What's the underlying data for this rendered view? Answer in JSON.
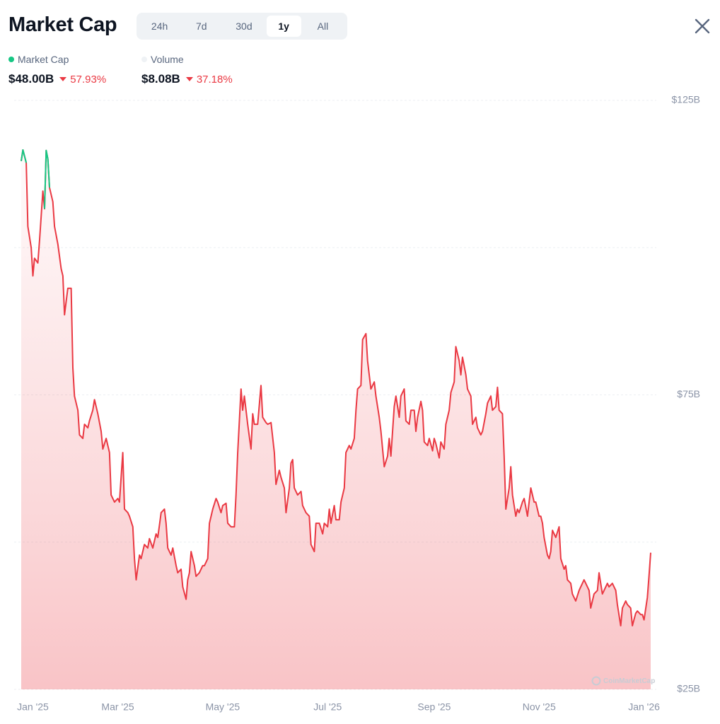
{
  "header": {
    "title": "Market Cap",
    "tabs": [
      "24h",
      "7d",
      "30d",
      "1y",
      "All"
    ],
    "active_tab": 3
  },
  "stats": [
    {
      "name": "Market Cap",
      "color": "#16c784",
      "value": "$48.00B",
      "change": "57.93%"
    },
    {
      "name": "Volume",
      "color": "#eff2f5",
      "value": "$8.08B",
      "change": "37.18%"
    }
  ],
  "watermark": "CoinMarketCap",
  "chart_data": {
    "type": "line",
    "x": [
      0,
      1,
      3,
      4,
      6,
      7,
      8,
      10,
      11,
      13,
      14,
      15,
      16,
      17,
      19,
      20,
      22,
      24,
      25,
      26,
      28,
      30,
      31,
      32,
      34,
      35,
      37,
      38,
      40,
      41,
      43,
      44,
      46,
      48,
      49,
      51,
      53,
      54,
      56,
      58,
      59,
      61,
      62,
      64,
      65,
      67,
      68,
      69,
      71,
      72,
      74,
      76,
      77,
      79,
      81,
      82,
      84,
      86,
      87,
      88,
      90,
      91,
      93,
      94,
      96,
      97,
      99,
      100,
      101,
      102,
      104,
      105,
      107,
      109,
      110,
      112,
      113,
      115,
      117,
      118,
      120,
      121,
      123,
      124,
      126,
      128,
      129,
      130,
      132,
      133,
      134,
      136,
      138,
      139,
      140,
      142,
      144,
      145,
      147,
      148,
      150,
      152,
      153,
      155,
      156,
      158,
      159,
      161,
      162,
      163,
      164,
      166,
      168,
      169,
      171,
      173,
      174,
      176,
      177,
      179,
      181,
      182,
      184,
      185,
      186,
      188,
      189,
      191,
      192,
      194,
      195,
      197,
      198,
      200,
      201,
      202,
      204,
      205,
      207,
      208,
      210,
      212,
      213,
      215,
      216,
      218,
      220,
      221,
      222,
      224,
      225,
      227,
      228,
      230,
      231,
      233,
      234,
      236,
      237,
      238,
      240,
      241,
      242,
      244,
      245,
      247,
      248,
      249,
      251,
      252,
      254,
      255,
      257,
      258,
      260,
      261,
      263,
      264,
      265,
      267,
      268,
      270,
      271,
      273,
      274,
      276,
      277,
      279,
      280,
      282,
      283,
      285,
      286,
      287,
      289,
      290,
      291,
      293,
      294,
      295,
      297,
      298,
      299,
      301,
      302,
      304,
      305,
      306,
      308,
      309,
      311,
      312,
      313,
      314,
      316,
      317,
      318,
      319,
      321,
      323,
      324,
      326,
      327,
      328,
      330,
      331,
      333,
      335,
      336,
      338,
      339,
      341,
      342,
      344,
      346,
      347,
      349,
      350,
      352,
      353,
      355,
      357,
      358,
      360,
      361,
      363,
      364,
      366,
      367,
      369,
      370,
      372,
      373,
      374,
      376,
      377,
      378
    ],
    "series": [
      {
        "name": "Market Cap",
        "color": "#ea3943",
        "up_color": "#16c784",
        "values": [
          114.7,
          116.6,
          114.4,
          103.6,
          100.0,
          95.2,
          98.2,
          97.4,
          101.2,
          109.6,
          106.6,
          116.5,
          115.0,
          110.2,
          107.8,
          103.6,
          100.6,
          96.4,
          95.2,
          88.6,
          93.1,
          93.1,
          79.6,
          74.8,
          72.4,
          68.2,
          67.6,
          70.0,
          69.4,
          70.6,
          72.4,
          74.2,
          71.8,
          68.8,
          65.8,
          67.6,
          65.2,
          58.0,
          56.8,
          57.4,
          56.8,
          65.2,
          55.6,
          55.0,
          54.4,
          52.6,
          47.2,
          43.6,
          47.8,
          47.2,
          49.6,
          49.0,
          50.6,
          49.0,
          51.4,
          50.8,
          55.0,
          55.6,
          53.2,
          49.0,
          47.8,
          49.0,
          46.0,
          44.8,
          45.4,
          42.4,
          40.3,
          43.6,
          44.8,
          48.4,
          46.0,
          44.2,
          44.8,
          46.0,
          46.0,
          47.2,
          53.2,
          55.6,
          57.4,
          56.8,
          55.0,
          56.2,
          56.6,
          53.2,
          52.6,
          52.6,
          58.0,
          65.2,
          76.0,
          72.4,
          74.8,
          70.0,
          65.8,
          71.8,
          70.0,
          70.0,
          76.6,
          71.2,
          70.3,
          70.0,
          70.3,
          65.2,
          59.8,
          62.2,
          61.0,
          59.2,
          55.0,
          59.2,
          63.4,
          64.0,
          59.2,
          58.0,
          58.6,
          56.2,
          55.0,
          54.4,
          49.6,
          48.4,
          53.2,
          53.2,
          51.4,
          53.2,
          52.6,
          55.6,
          53.2,
          56.2,
          53.8,
          53.8,
          56.8,
          59.2,
          65.2,
          66.4,
          65.8,
          67.6,
          72.4,
          76.0,
          76.6,
          84.4,
          85.4,
          80.8,
          76.0,
          77.2,
          74.8,
          71.2,
          68.8,
          62.8,
          64.6,
          67.6,
          64.6,
          73.0,
          74.8,
          71.2,
          74.8,
          76.0,
          70.6,
          70.0,
          72.4,
          72.4,
          68.8,
          71.2,
          73.9,
          72.4,
          67.0,
          66.4,
          67.6,
          65.5,
          67.6,
          66.7,
          64.3,
          67.0,
          65.8,
          70.0,
          72.4,
          75.4,
          77.2,
          83.2,
          80.8,
          78.4,
          81.4,
          78.4,
          76.0,
          74.8,
          70.0,
          71.2,
          69.4,
          68.2,
          68.8,
          71.8,
          73.6,
          74.8,
          72.4,
          73.0,
          76.3,
          72.4,
          71.8,
          64.6,
          55.6,
          59.2,
          62.8,
          58.0,
          54.4,
          55.6,
          55.0,
          56.8,
          57.4,
          54.4,
          56.8,
          59.2,
          56.8,
          56.8,
          54.4,
          54.4,
          53.2,
          50.8,
          47.8,
          47.2,
          48.4,
          52.0,
          50.8,
          52.6,
          47.2,
          45.4,
          46.0,
          43.6,
          43.0,
          41.2,
          40.0,
          41.8,
          42.4,
          43.6,
          43.0,
          41.8,
          38.8,
          41.2,
          41.8,
          44.8,
          41.2,
          41.8,
          43.0,
          42.4,
          43.0,
          41.8,
          39.4,
          35.8,
          38.8,
          40.0,
          39.4,
          38.8,
          35.8,
          37.9,
          38.3,
          37.7,
          37.7,
          36.8,
          40.6,
          44.2,
          48.2
        ]
      }
    ],
    "xlim": [
      0,
      378
    ],
    "xticks": [
      {
        "value": 7,
        "label": "Jan '25"
      },
      {
        "value": 58,
        "label": "Mar '25"
      },
      {
        "value": 121,
        "label": "May '25"
      },
      {
        "value": 184,
        "label": "Jul '25"
      },
      {
        "value": 248,
        "label": "Sep '25"
      },
      {
        "value": 311,
        "label": "Nov '25"
      },
      {
        "value": 374,
        "label": "Jan '26"
      }
    ],
    "ylim": [
      25,
      125
    ],
    "yticks": [
      {
        "value": 125,
        "label": "$125B"
      },
      {
        "value": 75,
        "label": "$75B"
      },
      {
        "value": 25,
        "label": "$25B"
      }
    ],
    "grid": true
  }
}
